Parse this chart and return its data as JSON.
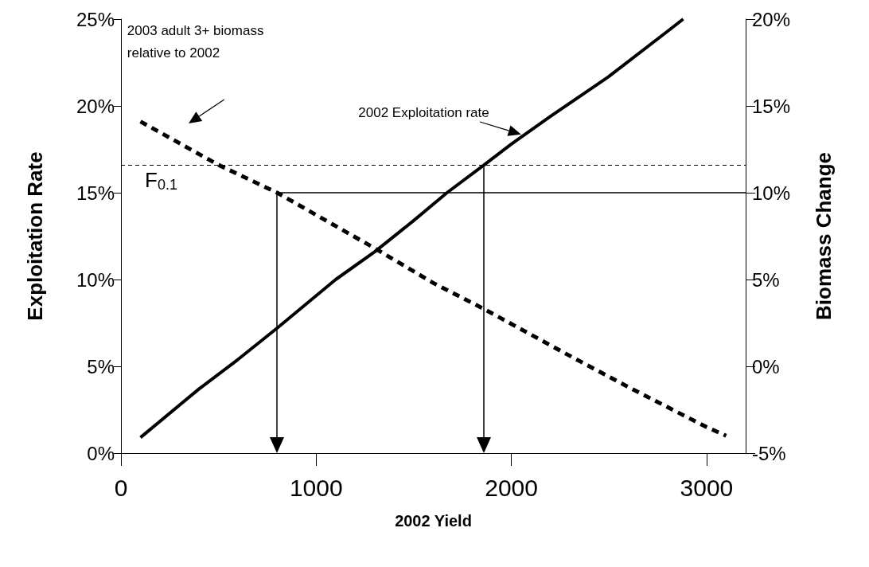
{
  "chart_data": {
    "type": "line",
    "xlabel": "2002 Yield",
    "ylabel": "Exploitation Rate",
    "y2label": "Biomass Change",
    "xlim": [
      0,
      3200
    ],
    "xticks": [
      0,
      1000,
      2000,
      3000
    ],
    "ylim": [
      0,
      25
    ],
    "yticks": [
      {
        "value": 0,
        "label": "0%"
      },
      {
        "value": 5,
        "label": "5%"
      },
      {
        "value": 10,
        "label": "10%"
      },
      {
        "value": 15,
        "label": "15%"
      },
      {
        "value": 20,
        "label": "20%"
      },
      {
        "value": 25,
        "label": "25%"
      }
    ],
    "y2lim": [
      -5,
      20
    ],
    "y2ticks": [
      {
        "value": -5,
        "label": "-5%"
      },
      {
        "value": 0,
        "label": "0%"
      },
      {
        "value": 5,
        "label": "5%"
      },
      {
        "value": 10,
        "label": "10%"
      },
      {
        "value": 15,
        "label": "15%"
      },
      {
        "value": 20,
        "label": "20%"
      }
    ],
    "grid": false,
    "marker": "none",
    "series": [
      {
        "color": "#000000",
        "line_style": "solid",
        "x": [
          100,
          400,
          600,
          800,
          1100,
          1300,
          1500,
          1670,
          1860,
          2000,
          2200,
          2500,
          2800,
          2880
        ],
        "values": [
          0.9,
          3.7,
          5.4,
          7.2,
          10,
          11.6,
          13.4,
          15,
          16.6,
          17.8,
          19.4,
          21.7,
          24.3,
          25
        ]
      },
      {
        "color": "#000000",
        "line_style": "dashed",
        "axis": "y2",
        "x": [
          100,
          500,
          800,
          1300,
          1600,
          1860,
          2300,
          2600,
          3000,
          3100
        ],
        "values": [
          14.1,
          11.6,
          10,
          6.8,
          4.8,
          3.3,
          0.6,
          -1.2,
          -3.5,
          -4.0
        ]
      },
      {
        "type": "line",
        "color": "#000000",
        "line_style": "solid",
        "x": [
          800,
          3200
        ],
        "values": [
          15,
          15
        ]
      }
    ],
    "ref_lines": [
      {
        "axis": "y",
        "value": 16.6,
        "label": "F$_{0.1}$",
        "color": "#000000",
        "line_style": "dashed"
      }
    ],
    "annotations": [
      "2003 adult 3+ biomass relative to 2002",
      "2002 Exploitation rate"
    ]
  }
}
